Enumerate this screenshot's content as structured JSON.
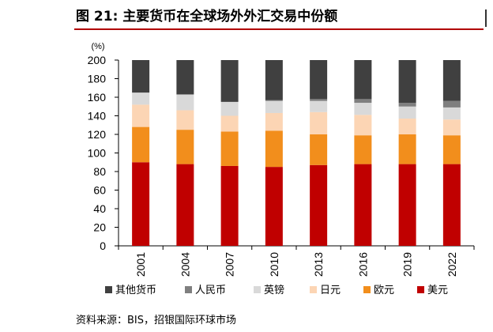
{
  "figure_title": "图 21: 主要货币在全球场外外汇交易中份额",
  "source": "资料来源：BIS，招银国际环球市场",
  "chart_data": {
    "type": "bar",
    "stacked": true,
    "y_unit": "(%)",
    "ylim": [
      0,
      200
    ],
    "yticks": [
      0,
      20,
      40,
      60,
      80,
      100,
      120,
      140,
      160,
      180,
      200
    ],
    "categories": [
      "2001",
      "2004",
      "2007",
      "2010",
      "2013",
      "2016",
      "2019",
      "2022"
    ],
    "series": [
      {
        "name": "美元",
        "color": "#c00000",
        "values": [
          90,
          88,
          86,
          85,
          87,
          88,
          88,
          88
        ]
      },
      {
        "name": "欧元",
        "color": "#f28e1c",
        "values": [
          38,
          37,
          37,
          39,
          33,
          31,
          32,
          31
        ]
      },
      {
        "name": "日元",
        "color": "#fcd5b4",
        "values": [
          24,
          21,
          17,
          19,
          24,
          22,
          17,
          17
        ]
      },
      {
        "name": "英镑",
        "color": "#d9d9d9",
        "values": [
          13,
          17,
          15,
          13,
          12,
          13,
          13,
          13
        ]
      },
      {
        "name": "人民币",
        "color": "#7f7f7f",
        "values": [
          0,
          0,
          0,
          1,
          2,
          4,
          4,
          7
        ]
      },
      {
        "name": "其他货币",
        "color": "#404040",
        "values": [
          35,
          37,
          45,
          43,
          42,
          42,
          46,
          44
        ]
      }
    ],
    "legend_order": [
      "其他货币",
      "人民币",
      "英镑",
      "日元",
      "欧元",
      "美元"
    ],
    "legend_position": "bottom",
    "grid": false
  }
}
